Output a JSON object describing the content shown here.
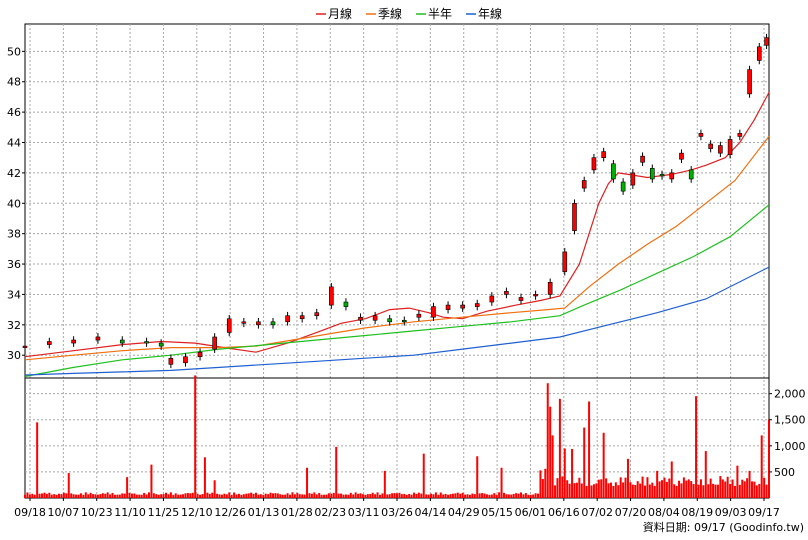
{
  "chart_data": {
    "type": "line",
    "legend": [
      {
        "name": "月線",
        "color": "#e02020"
      },
      {
        "name": "季線",
        "color": "#f07010"
      },
      {
        "name": "半年",
        "color": "#20c020"
      },
      {
        "name": "年線",
        "color": "#2060d0"
      }
    ],
    "legend_placement": "top-center",
    "grid": true,
    "price_axis": {
      "ticks": [
        "30",
        "32",
        "34",
        "36",
        "38",
        "40",
        "42",
        "44",
        "46",
        "48",
        "50"
      ],
      "ylim": [
        28.5,
        51.8
      ],
      "side": "left"
    },
    "volume_axis": {
      "ticks": [
        "500",
        "1,000",
        "1,500",
        "2,000"
      ],
      "ylim": [
        0,
        2300
      ],
      "side": "right"
    },
    "x_tick_labels": [
      "09/18",
      "10/07",
      "10/23",
      "11/10",
      "11/25",
      "12/10",
      "12/26",
      "01/13",
      "01/28",
      "02/23",
      "03/11",
      "03/26",
      "04/14",
      "04/29",
      "05/15",
      "06/01",
      "06/16",
      "07/02",
      "07/20",
      "08/04",
      "08/19",
      "09/03",
      "09/17"
    ],
    "series": [
      {
        "name": "月線",
        "color": "#e02020",
        "values": [
          [
            0,
            29.9
          ],
          [
            20,
            30.3
          ],
          [
            40,
            30.7
          ],
          [
            56,
            30.9
          ],
          [
            70,
            30.8
          ],
          [
            82,
            30.5
          ],
          [
            95,
            30.2
          ],
          [
            108,
            30.8
          ],
          [
            120,
            31.5
          ],
          [
            130,
            32.1
          ],
          [
            140,
            32.4
          ],
          [
            150,
            33.0
          ],
          [
            158,
            33.1
          ],
          [
            166,
            32.8
          ],
          [
            172,
            32.5
          ],
          [
            180,
            32.4
          ],
          [
            190,
            32.9
          ],
          [
            202,
            33.3
          ],
          [
            212,
            33.6
          ],
          [
            220,
            33.9
          ],
          [
            228,
            36.0
          ],
          [
            232,
            38.0
          ],
          [
            236,
            40.0
          ],
          [
            240,
            41.3
          ],
          [
            244,
            42.0
          ],
          [
            248,
            41.9
          ],
          [
            256,
            41.7
          ],
          [
            266,
            41.9
          ],
          [
            274,
            42.2
          ],
          [
            280,
            42.5
          ],
          [
            288,
            43.0
          ],
          [
            294,
            44.0
          ],
          [
            300,
            45.5
          ],
          [
            306,
            47.3
          ]
        ]
      },
      {
        "name": "季線",
        "color": "#f07010",
        "values": [
          [
            0,
            29.7
          ],
          [
            20,
            30.0
          ],
          [
            40,
            30.3
          ],
          [
            60,
            30.5
          ],
          [
            80,
            30.5
          ],
          [
            95,
            30.6
          ],
          [
            110,
            31.0
          ],
          [
            125,
            31.4
          ],
          [
            140,
            31.8
          ],
          [
            160,
            32.2
          ],
          [
            180,
            32.5
          ],
          [
            200,
            32.8
          ],
          [
            215,
            33.0
          ],
          [
            222,
            33.1
          ],
          [
            232,
            34.5
          ],
          [
            244,
            36.0
          ],
          [
            256,
            37.3
          ],
          [
            268,
            38.5
          ],
          [
            280,
            40.0
          ],
          [
            292,
            41.5
          ],
          [
            306,
            44.4
          ]
        ]
      },
      {
        "name": "半年",
        "color": "#20c020",
        "values": [
          [
            0,
            28.6
          ],
          [
            20,
            29.2
          ],
          [
            40,
            29.7
          ],
          [
            60,
            30.0
          ],
          [
            80,
            30.4
          ],
          [
            100,
            30.7
          ],
          [
            120,
            31.0
          ],
          [
            140,
            31.3
          ],
          [
            160,
            31.6
          ],
          [
            180,
            31.9
          ],
          [
            200,
            32.2
          ],
          [
            220,
            32.6
          ],
          [
            230,
            33.3
          ],
          [
            245,
            34.3
          ],
          [
            260,
            35.4
          ],
          [
            275,
            36.5
          ],
          [
            290,
            37.8
          ],
          [
            306,
            39.9
          ]
        ]
      },
      {
        "name": "年線",
        "color": "#2060d0",
        "values": [
          [
            0,
            28.7
          ],
          [
            20,
            28.8
          ],
          [
            40,
            28.9
          ],
          [
            60,
            29.0
          ],
          [
            80,
            29.2
          ],
          [
            100,
            29.4
          ],
          [
            120,
            29.6
          ],
          [
            140,
            29.8
          ],
          [
            160,
            30.0
          ],
          [
            180,
            30.4
          ],
          [
            200,
            30.8
          ],
          [
            220,
            31.2
          ],
          [
            240,
            32.0
          ],
          [
            260,
            32.8
          ],
          [
            280,
            33.7
          ],
          [
            306,
            35.8
          ]
        ]
      }
    ],
    "candles": [
      [
        0,
        30.6,
        30.6
      ],
      [
        10,
        30.7,
        30.9
      ],
      [
        20,
        30.8,
        31.0
      ],
      [
        30,
        31.0,
        31.2
      ],
      [
        40,
        31.0,
        30.8
      ],
      [
        50,
        30.9,
        30.8
      ],
      [
        56,
        30.8,
        30.6
      ],
      [
        60,
        29.4,
        29.8
      ],
      [
        66,
        29.5,
        29.9
      ],
      [
        72,
        29.9,
        30.2
      ],
      [
        78,
        30.4,
        31.2
      ],
      [
        84,
        31.5,
        32.4
      ],
      [
        90,
        32.1,
        32.2
      ],
      [
        96,
        32.0,
        32.2
      ],
      [
        102,
        32.2,
        32.0
      ],
      [
        108,
        32.2,
        32.6
      ],
      [
        114,
        32.4,
        32.6
      ],
      [
        120,
        32.6,
        32.8
      ],
      [
        126,
        33.3,
        34.5
      ],
      [
        132,
        33.5,
        33.2
      ],
      [
        138,
        32.3,
        32.5
      ],
      [
        144,
        32.3,
        32.6
      ],
      [
        150,
        32.4,
        32.2
      ],
      [
        156,
        32.3,
        32.2
      ],
      [
        162,
        32.5,
        32.7
      ],
      [
        168,
        32.5,
        33.2
      ],
      [
        174,
        33.0,
        33.3
      ],
      [
        180,
        33.1,
        33.3
      ],
      [
        186,
        33.2,
        33.4
      ],
      [
        192,
        33.5,
        33.9
      ],
      [
        198,
        34.0,
        34.2
      ],
      [
        204,
        33.6,
        33.8
      ],
      [
        210,
        33.9,
        34.0
      ],
      [
        216,
        34.0,
        34.8
      ],
      [
        222,
        35.5,
        36.8
      ],
      [
        226,
        38.2,
        40.0
      ],
      [
        230,
        41.0,
        41.5
      ],
      [
        234,
        42.2,
        43.0
      ],
      [
        238,
        43.0,
        43.4
      ],
      [
        242,
        42.6,
        41.6
      ],
      [
        246,
        41.4,
        40.8
      ],
      [
        250,
        41.2,
        42.0
      ],
      [
        254,
        42.7,
        43.1
      ],
      [
        258,
        42.3,
        41.6
      ],
      [
        262,
        41.9,
        41.8
      ],
      [
        266,
        41.6,
        42.0
      ],
      [
        270,
        42.9,
        43.3
      ],
      [
        274,
        42.2,
        41.6
      ],
      [
        278,
        44.4,
        44.6
      ],
      [
        282,
        43.6,
        43.9
      ],
      [
        286,
        43.3,
        43.8
      ],
      [
        290,
        43.2,
        44.2
      ],
      [
        294,
        44.4,
        44.6
      ],
      [
        298,
        47.2,
        48.8
      ],
      [
        302,
        49.4,
        50.3
      ],
      [
        305,
        50.4,
        50.9
      ]
    ],
    "volume": {
      "peaks": [
        [
          5,
          1450
        ],
        [
          18,
          480
        ],
        [
          42,
          400
        ],
        [
          52,
          640
        ],
        [
          70,
          2350
        ],
        [
          74,
          780
        ],
        [
          78,
          340
        ],
        [
          116,
          580
        ],
        [
          128,
          980
        ],
        [
          148,
          520
        ],
        [
          164,
          850
        ],
        [
          186,
          800
        ],
        [
          196,
          580
        ],
        [
          212,
          530
        ],
        [
          214,
          560
        ],
        [
          215,
          2200
        ],
        [
          216,
          1750
        ],
        [
          217,
          1200
        ],
        [
          220,
          1900
        ],
        [
          222,
          950
        ],
        [
          225,
          940
        ],
        [
          230,
          1350
        ],
        [
          232,
          1850
        ],
        [
          238,
          1250
        ],
        [
          248,
          750
        ],
        [
          260,
          520
        ],
        [
          266,
          700
        ],
        [
          276,
          1950
        ],
        [
          280,
          900
        ],
        [
          286,
          420
        ],
        [
          293,
          620
        ],
        [
          298,
          520
        ],
        [
          303,
          1200
        ],
        [
          306,
          1500
        ]
      ],
      "base_before_jun": 110,
      "base_after_jun": 420
    },
    "footer": "資料日期: 09/17  (Goodinfo.tw)"
  }
}
